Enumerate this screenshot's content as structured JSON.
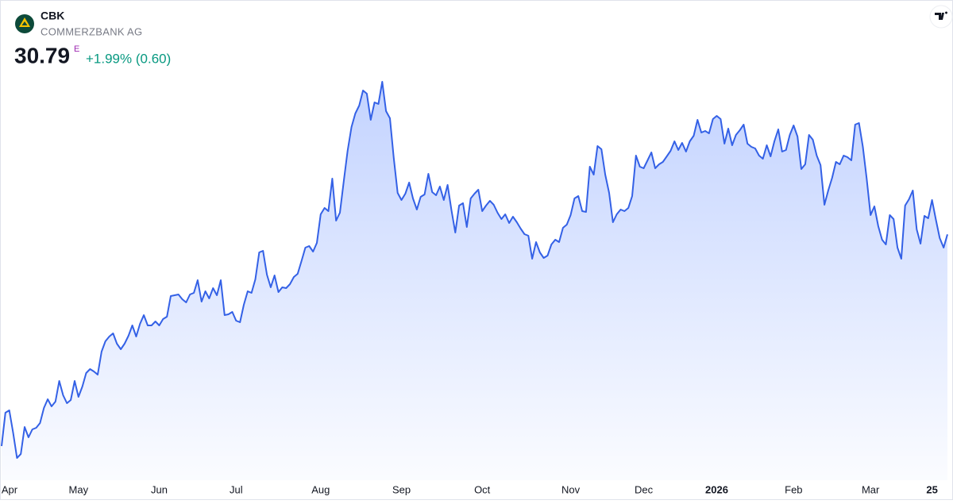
{
  "header": {
    "symbol": "CBK",
    "name": "COMMERZBANK AG",
    "price": "30.79",
    "price_flag": "E",
    "change": "+1.99% (0.60)"
  },
  "chart_data": {
    "type": "area",
    "color": "#3461e6",
    "xlim": [
      0,
      246
    ],
    "xticks": [
      {
        "value": 2,
        "label": "Apr"
      },
      {
        "value": 20,
        "label": "May"
      },
      {
        "value": 41,
        "label": "Jun"
      },
      {
        "value": 61,
        "label": "Jul"
      },
      {
        "value": 83,
        "label": "Aug"
      },
      {
        "value": 104,
        "label": "Sep"
      },
      {
        "value": 125,
        "label": "Oct"
      },
      {
        "value": 148,
        "label": "Nov"
      },
      {
        "value": 167,
        "label": "Dec"
      },
      {
        "value": 186,
        "label": "2026"
      },
      {
        "value": 206,
        "label": "Feb"
      },
      {
        "value": 226,
        "label": "Mar"
      },
      {
        "value": 242,
        "label": "25"
      }
    ],
    "ylim": [
      18.6,
      40.6
    ],
    "values": [
      20.12,
      21.8,
      21.92,
      20.8,
      19.52,
      19.72,
      21.08,
      20.56,
      20.96,
      21.04,
      21.28,
      22.04,
      22.48,
      22.12,
      22.36,
      23.4,
      22.68,
      22.28,
      22.44,
      23.4,
      22.6,
      23.12,
      23.8,
      24.0,
      23.88,
      23.72,
      24.88,
      25.4,
      25.64,
      25.8,
      25.28,
      25.0,
      25.28,
      25.68,
      26.2,
      25.64,
      26.28,
      26.72,
      26.2,
      26.2,
      26.4,
      26.2,
      26.52,
      26.64,
      27.68,
      27.72,
      27.76,
      27.52,
      27.36,
      27.76,
      27.84,
      28.48,
      27.4,
      27.92,
      27.56,
      28.08,
      27.72,
      28.48,
      26.72,
      26.76,
      26.88,
      26.44,
      26.36,
      27.24,
      27.92,
      27.84,
      28.52,
      29.88,
      29.96,
      28.76,
      28.12,
      28.72,
      27.88,
      28.12,
      28.08,
      28.28,
      28.64,
      28.8,
      29.44,
      30.12,
      30.2,
      29.92,
      30.36,
      31.8,
      32.12,
      31.96,
      33.6,
      31.48,
      31.88,
      33.48,
      35.0,
      36.2,
      36.88,
      37.28,
      38.04,
      37.88,
      36.56,
      37.44,
      37.36,
      38.48,
      37.0,
      36.64,
      34.64,
      32.88,
      32.52,
      32.84,
      33.4,
      32.6,
      32.04,
      32.68,
      32.8,
      33.84,
      32.92,
      32.76,
      33.2,
      32.52,
      33.28,
      32.0,
      30.88,
      32.24,
      32.36,
      31.16,
      32.6,
      32.84,
      33.04,
      31.96,
      32.24,
      32.48,
      32.28,
      31.88,
      31.56,
      31.8,
      31.36,
      31.68,
      31.4,
      31.08,
      30.8,
      30.72,
      29.56,
      30.4,
      29.88,
      29.6,
      29.72,
      30.28,
      30.52,
      30.4,
      31.12,
      31.28,
      31.76,
      32.6,
      32.72,
      31.96,
      31.92,
      34.2,
      33.8,
      35.24,
      35.08,
      33.8,
      32.88,
      31.4,
      31.8,
      32.04,
      31.96,
      32.12,
      32.72,
      34.76,
      34.2,
      34.12,
      34.52,
      34.92,
      34.12,
      34.32,
      34.44,
      34.72,
      35.0,
      35.48,
      35.04,
      35.4,
      34.96,
      35.48,
      35.76,
      36.56,
      35.92,
      36.0,
      35.88,
      36.6,
      36.76,
      36.6,
      35.36,
      36.12,
      35.28,
      35.8,
      36.04,
      36.32,
      35.36,
      35.2,
      35.12,
      34.76,
      34.6,
      35.28,
      34.72,
      35.48,
      36.08,
      34.96,
      35.04,
      35.8,
      36.28,
      35.72,
      34.08,
      34.32,
      35.8,
      35.56,
      34.76,
      34.28,
      32.28,
      33.0,
      33.64,
      34.44,
      34.32,
      34.76,
      34.68,
      34.52,
      36.32,
      36.4,
      35.2,
      33.6,
      31.76,
      32.2,
      31.2,
      30.52,
      30.28,
      31.76,
      31.56,
      30.12,
      29.56,
      32.24,
      32.56,
      33.0,
      31.04,
      30.32,
      31.72,
      31.6,
      32.52,
      31.52,
      30.6,
      30.12,
      30.79
    ]
  }
}
